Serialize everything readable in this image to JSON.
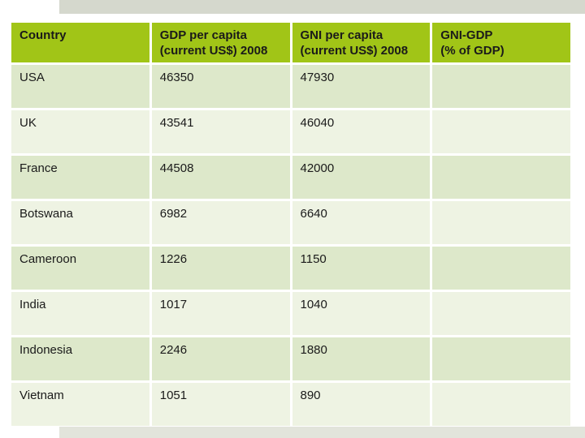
{
  "slide": {
    "table": {
      "header": {
        "country": "Country",
        "gdp": "GDP per capita\n(current US$) 2008",
        "gni": "GNI per capita\n(current US$) 2008",
        "gap": "GNI-GDP\n(% of GDP)"
      },
      "rows": [
        {
          "country": "USA",
          "gdp": "46350",
          "gni": "47930",
          "gap": ""
        },
        {
          "country": "UK",
          "gdp": "43541",
          "gni": "46040",
          "gap": ""
        },
        {
          "country": "France",
          "gdp": "44508",
          "gni": "42000",
          "gap": ""
        },
        {
          "country": "Botswana",
          "gdp": "6982",
          "gni": "6640",
          "gap": ""
        },
        {
          "country": "Cameroon",
          "gdp": "1226",
          "gni": "1150",
          "gap": ""
        },
        {
          "country": "India",
          "gdp": "1017",
          "gni": "1040",
          "gap": ""
        },
        {
          "country": "Indonesia",
          "gdp": "2246",
          "gni": "1880",
          "gap": ""
        },
        {
          "country": "Vietnam",
          "gdp": "1051",
          "gni": "890",
          "gap": ""
        }
      ]
    },
    "colors": {
      "header-green": "#a1c517",
      "row-dark": "#dde8ca",
      "row-light": "#eef3e3",
      "bar-top": "#d5d8cd",
      "bar-bottom": "#e2e4db",
      "text": "#1a1a1a"
    }
  }
}
